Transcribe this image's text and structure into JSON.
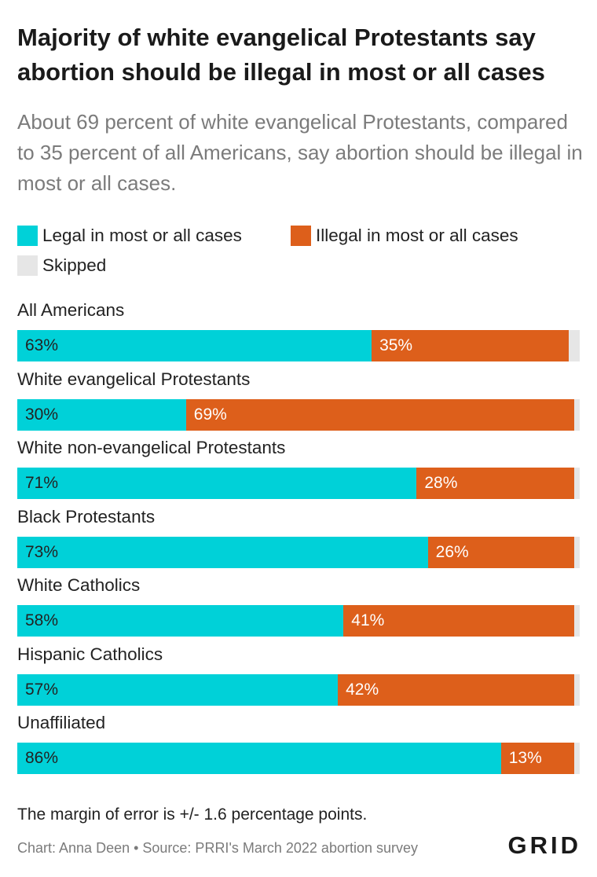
{
  "header": {
    "title": "Majority of white evangelical Protestants say abortion should be illegal in most or all cases",
    "subtitle": "About 69 percent of white evangelical Protestants, compared to 35 percent of all Americans, say abortion should be illegal in most or all cases."
  },
  "footer": {
    "note": "The margin of error is +/- 1.6 percentage points.",
    "source": "Chart: Anna Deen • Source: PRRI's March 2022 abortion survey",
    "logo": "GRID"
  },
  "colors": {
    "legal": "#00d1d8",
    "illegal": "#dd5f1b",
    "skipped": "#e6e6e6"
  },
  "chart_data": {
    "type": "bar",
    "orientation": "horizontal",
    "stacked": true,
    "title": "Majority of white evangelical Protestants say abortion should be illegal in most or all cases",
    "subtitle": "About 69 percent of white evangelical Protestants, compared to 35 percent of all Americans, say abortion should be illegal in most or all cases.",
    "xlim": [
      0,
      100
    ],
    "unit": "%",
    "legend_placement": "top",
    "categories": [
      "All Americans",
      "White evangelical Protestants",
      "White non-evangelical Protestants",
      "Black Protestants",
      "White Catholics",
      "Hispanic Catholics",
      "Unaffiliated"
    ],
    "series": [
      {
        "name": "Legal in most or all cases",
        "key": "legal",
        "values": [
          63,
          30,
          71,
          73,
          58,
          57,
          86
        ]
      },
      {
        "name": "Illegal in most or all cases",
        "key": "illegal",
        "values": [
          35,
          69,
          28,
          26,
          41,
          42,
          13
        ]
      },
      {
        "name": "Skipped",
        "key": "skipped",
        "values": [
          2,
          1,
          1,
          1,
          1,
          1,
          1
        ]
      }
    ]
  }
}
